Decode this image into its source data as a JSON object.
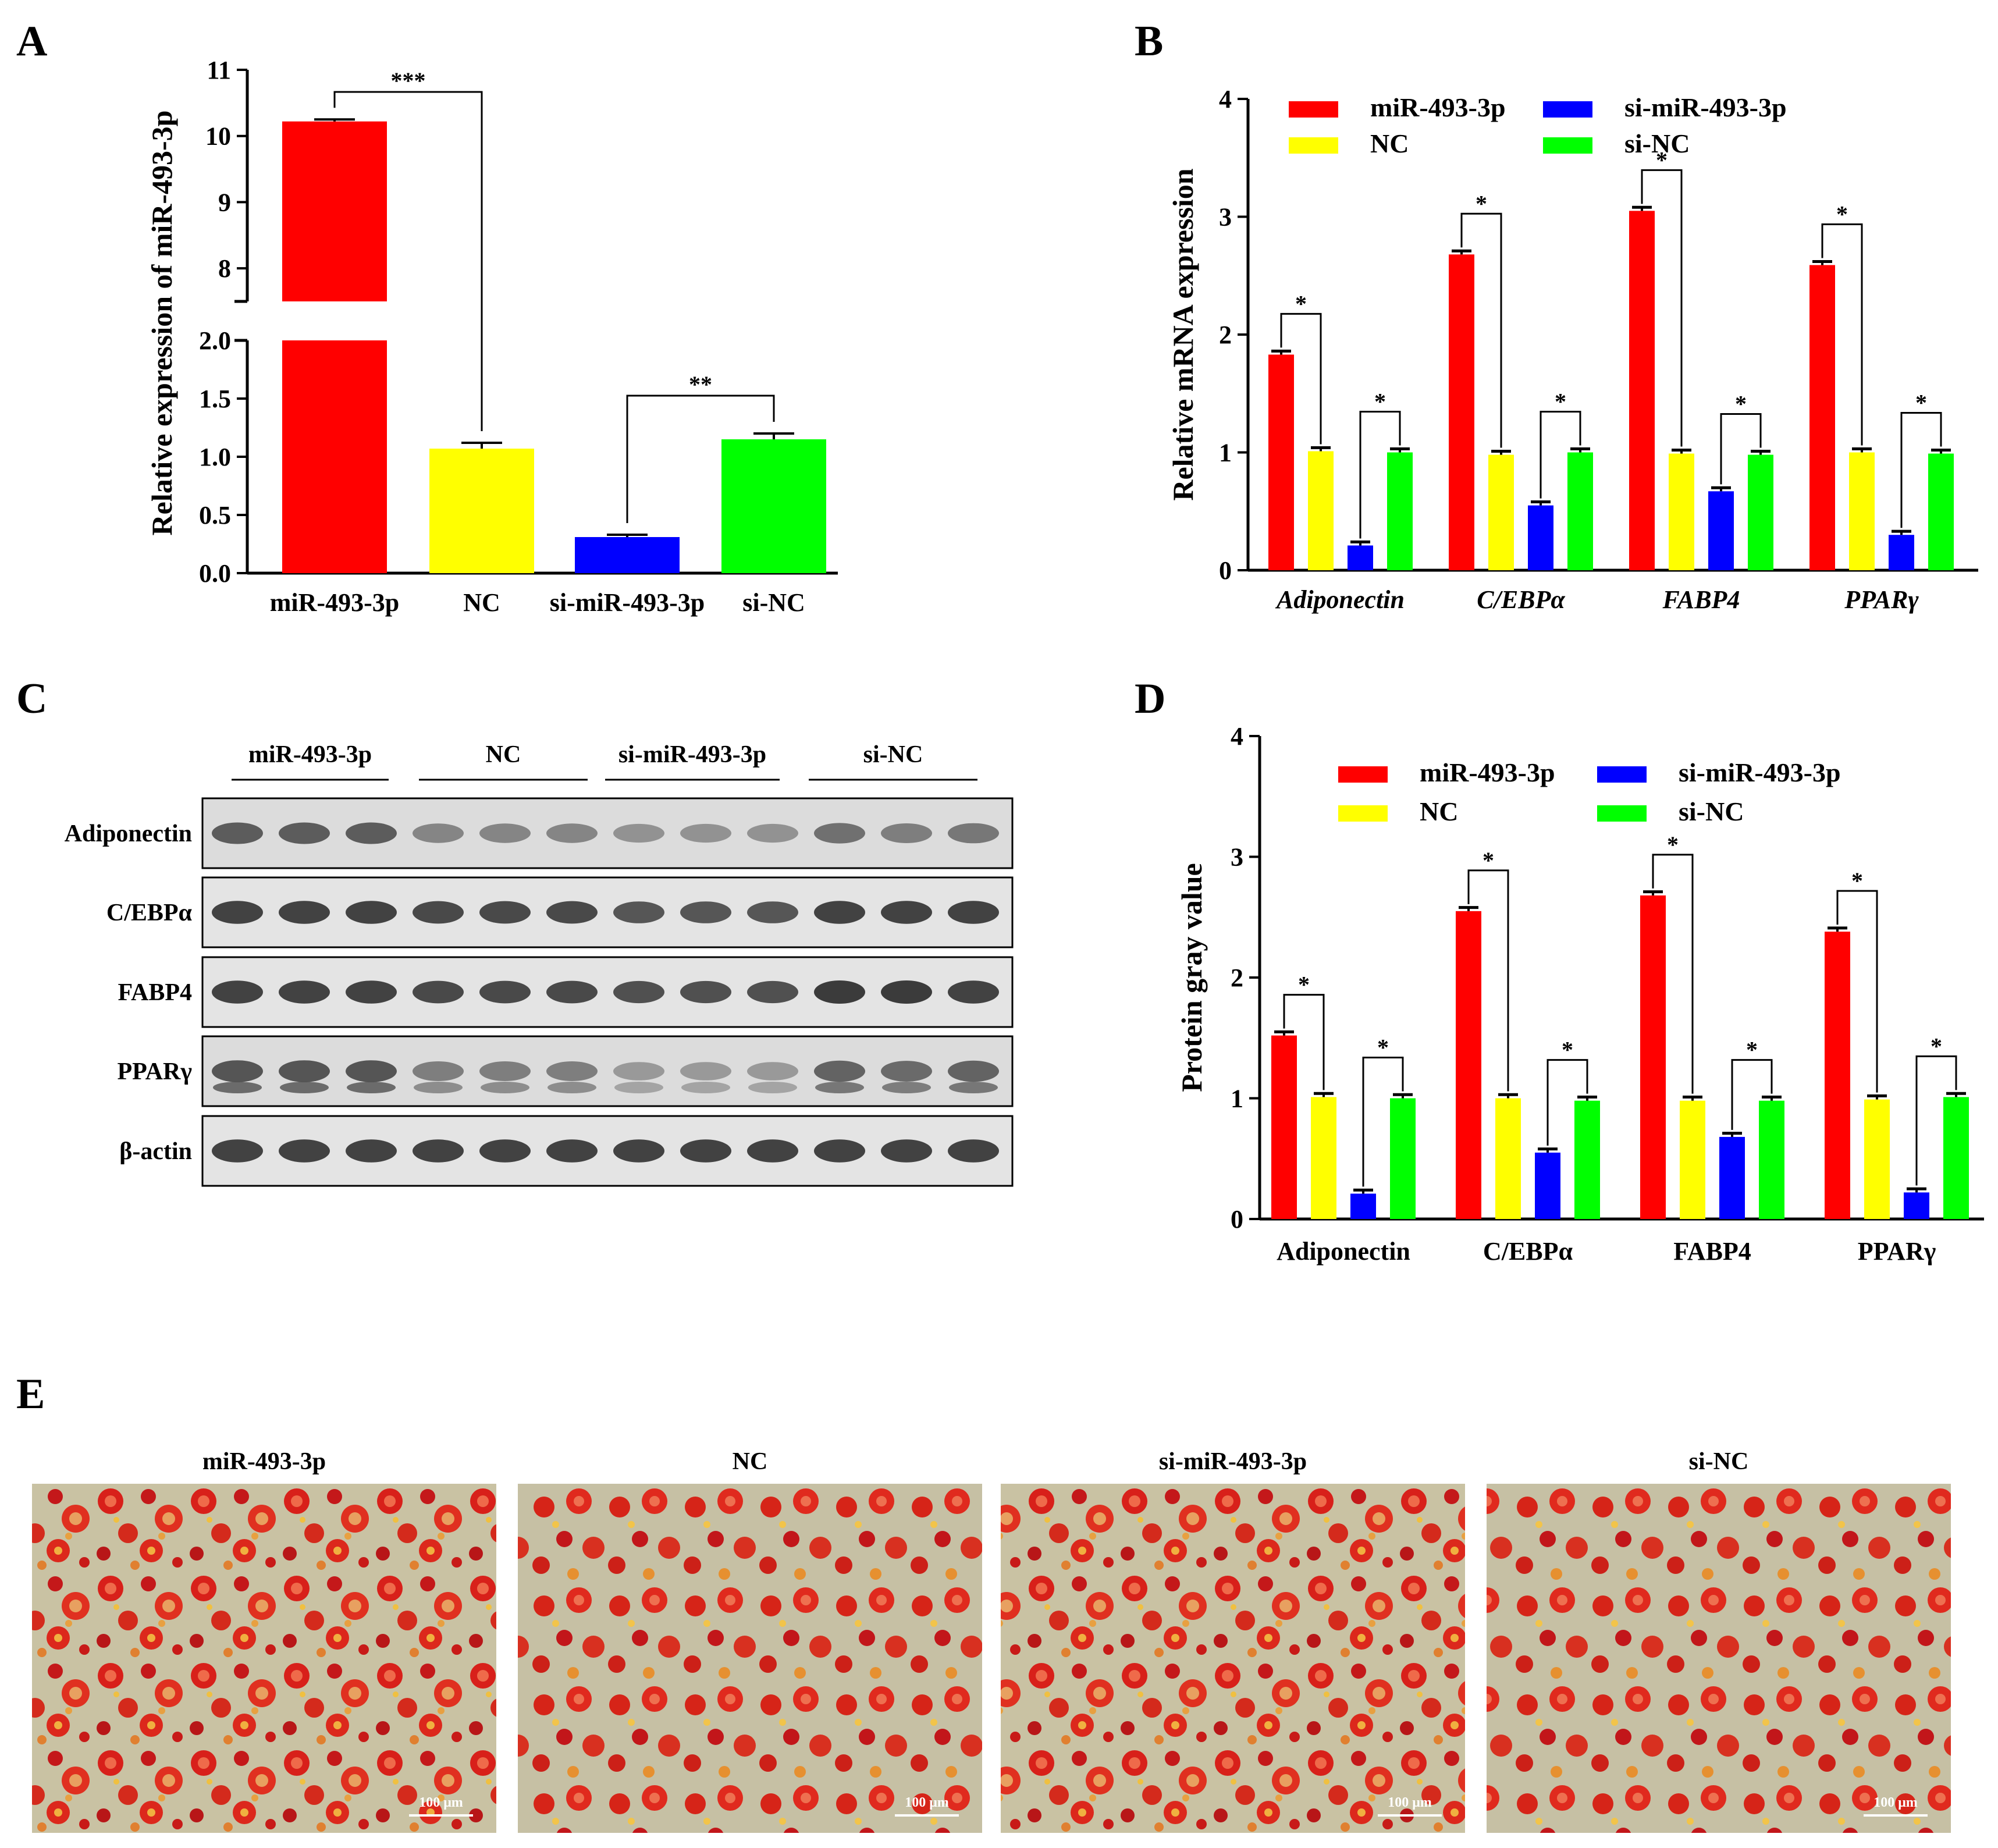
{
  "panel_labels": [
    "A",
    "B",
    "C",
    "D",
    "E"
  ],
  "colors": {
    "miR-493-3p": "#ff0000",
    "NC": "#ffff00",
    "si-miR-493-3p": "#0000ff",
    "si-NC": "#00ff00"
  },
  "chart_data": [
    {
      "panel": "A",
      "type": "bar",
      "ylabel": "Relative expression of miR-493-3p",
      "categories": [
        "miR-493-3p",
        "NC",
        "si-miR-493-3p",
        "si-NC"
      ],
      "values": [
        10.22,
        1.07,
        0.31,
        1.15
      ],
      "errors": [
        0.03,
        0.05,
        0.02,
        0.05
      ],
      "axis_break": {
        "lower": [
          0,
          2.0
        ],
        "upper": [
          7.5,
          11
        ]
      },
      "yticks_lower": [
        "0.0",
        "0.5",
        "1.0",
        "1.5",
        "2.0"
      ],
      "yticks_upper": [
        "8",
        "9",
        "10",
        "11"
      ],
      "significance": [
        {
          "from": "miR-493-3p",
          "to": "NC",
          "label": "***"
        },
        {
          "from": "si-miR-493-3p",
          "to": "si-NC",
          "label": "**"
        }
      ]
    },
    {
      "panel": "B",
      "type": "bar",
      "ylabel": "Relative mRNA expression",
      "categories": [
        "Adiponectin",
        "C/EBPα",
        "FABP4",
        "PPARγ"
      ],
      "ylim": [
        0,
        4
      ],
      "yticks": [
        "0",
        "1",
        "2",
        "3",
        "4"
      ],
      "series": [
        {
          "name": "miR-493-3p",
          "values": [
            1.83,
            2.68,
            3.05,
            2.59
          ]
        },
        {
          "name": "NC",
          "values": [
            1.01,
            0.98,
            0.99,
            1.0
          ]
        },
        {
          "name": "si-miR-493-3p",
          "values": [
            0.21,
            0.55,
            0.67,
            0.3
          ]
        },
        {
          "name": "si-NC",
          "values": [
            1.0,
            1.0,
            0.98,
            0.99
          ]
        }
      ],
      "significance_label": "*"
    },
    {
      "panel": "D",
      "type": "bar",
      "ylabel": "Protein gray value",
      "categories": [
        "Adiponectin",
        "C/EBPα",
        "FABP4",
        "PPARγ"
      ],
      "ylim": [
        0,
        4
      ],
      "yticks": [
        "0",
        "1",
        "2",
        "3",
        "4"
      ],
      "series": [
        {
          "name": "miR-493-3p",
          "values": [
            1.52,
            2.55,
            2.68,
            2.38
          ]
        },
        {
          "name": "NC",
          "values": [
            1.01,
            1.0,
            0.98,
            0.99
          ]
        },
        {
          "name": "si-miR-493-3p",
          "values": [
            0.21,
            0.55,
            0.68,
            0.22
          ]
        },
        {
          "name": "si-NC",
          "values": [
            1.0,
            0.98,
            0.98,
            1.01
          ]
        }
      ],
      "significance_label": "*"
    }
  ],
  "western_blot": {
    "groups": [
      "miR-493-3p",
      "NC",
      "si-miR-493-3p",
      "si-NC"
    ],
    "proteins": [
      "Adiponectin",
      "C/EBPα",
      "FABP4",
      "PPARγ",
      "β-actin"
    ]
  },
  "micrographs": {
    "titles": [
      "miR-493-3p",
      "NC",
      "si-miR-493-3p",
      "si-NC"
    ],
    "scale_bar": "100 μm"
  }
}
